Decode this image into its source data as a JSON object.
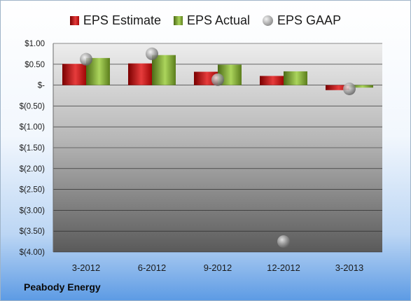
{
  "company": "Peabody Energy",
  "legend": {
    "estimate": "EPS Estimate",
    "actual": "EPS Actual",
    "gaap": "EPS GAAP"
  },
  "colors": {
    "estimate": "#c81414",
    "actual": "#86b13c",
    "gaap": "#a8a8a8"
  },
  "chart_data": {
    "type": "bar",
    "categories": [
      "3-2012",
      "6-2012",
      "9-2012",
      "12-2012",
      "3-2013"
    ],
    "series": [
      {
        "name": "EPS Estimate",
        "kind": "bar",
        "values": [
          0.51,
          0.52,
          0.32,
          0.22,
          -0.12
        ]
      },
      {
        "name": "EPS Actual",
        "kind": "bar",
        "values": [
          0.65,
          0.72,
          0.49,
          0.33,
          -0.06
        ]
      },
      {
        "name": "EPS GAAP",
        "kind": "point",
        "values": [
          0.62,
          0.75,
          0.13,
          -3.75,
          -0.09
        ]
      }
    ],
    "ylim": [
      -4.0,
      1.0
    ],
    "yticks": [
      "$1.00",
      "$0.50",
      "$-",
      "$(0.50)",
      "$(1.00)",
      "$(1.50)",
      "$(2.00)",
      "$(2.50)",
      "$(3.00)",
      "$(3.50)",
      "$(4.00)"
    ],
    "ytick_values": [
      1.0,
      0.5,
      0,
      -0.5,
      -1.0,
      -1.5,
      -2.0,
      -2.5,
      -3.0,
      -3.5,
      -4.0
    ],
    "grid": true,
    "legend_position": "top"
  }
}
